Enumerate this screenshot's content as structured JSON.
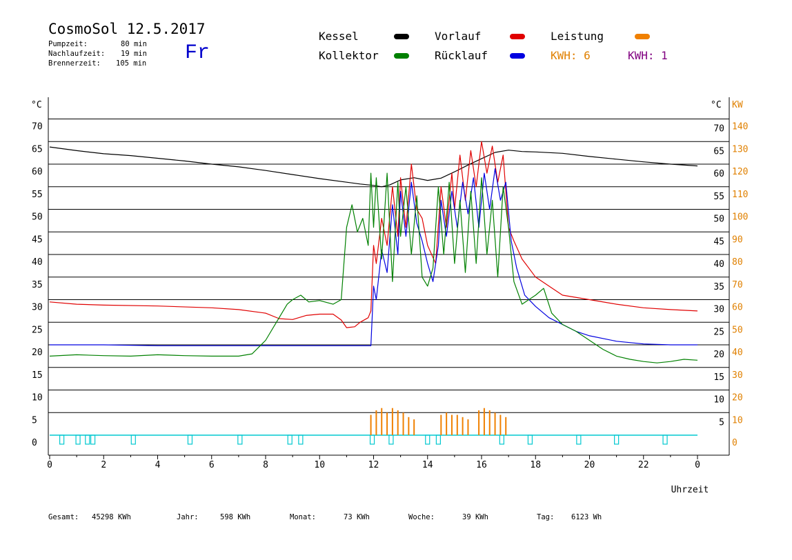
{
  "header": {
    "title": "CosmoSol 12.5.2017",
    "pump_label": "Pumpzeit:",
    "pump_value": "80 min",
    "nachlauf_label": "Nachlaufzeit:",
    "nachlauf_value": "19 min",
    "brenner_label": "Brennerzeit:",
    "brenner_value": "105 min",
    "day": "Fr"
  },
  "legend": {
    "kessel": {
      "label": "Kessel",
      "color": "#000000"
    },
    "vorlauf": {
      "label": "Vorlauf",
      "color": "#e00000"
    },
    "leistung": {
      "label": "Leistung",
      "color": "#f08000"
    },
    "kollektor": {
      "label": "Kollektor",
      "color": "#008000"
    },
    "ruecklauf": {
      "label": "Rücklauf",
      "color": "#0000e0"
    },
    "kwh_orange": {
      "label": "KWH: 6",
      "color": "#e08000"
    },
    "kwh_purple": {
      "label": "KWH: 1",
      "color": "#800080"
    }
  },
  "footer": {
    "gesamt_label": "Gesamt:",
    "gesamt_value": "45298 KWh",
    "jahr_label": "Jahr:",
    "jahr_value": "598 KWh",
    "monat_label": "Monat:",
    "monat_value": "73 KWh",
    "woche_label": "Woche:",
    "woche_value": "39 KWh",
    "tag_label": "Tag:",
    "tag_value": "6123 Wh"
  },
  "chart_data": {
    "type": "line",
    "xlabel": "Uhrzeit",
    "ylabel_left": "°C",
    "ylabel_right": "°C",
    "ylabel_right2": "KW",
    "xlim": [
      0,
      24
    ],
    "ylim": [
      0,
      70
    ],
    "x_ticks": [
      "0",
      "2",
      "4",
      "6",
      "8",
      "10",
      "12",
      "14",
      "16",
      "18",
      "20",
      "22",
      "0"
    ],
    "y_ticks_left": [
      "0",
      "5",
      "10",
      "15",
      "20",
      "25",
      "30",
      "35",
      "40",
      "45",
      "50",
      "55",
      "60",
      "65",
      "70"
    ],
    "y_ticks_right": [
      "5",
      "10",
      "15",
      "20",
      "25",
      "30",
      "35",
      "40",
      "45",
      "50",
      "55",
      "60",
      "65",
      "70"
    ],
    "y_ticks_kw": [
      "0",
      "10",
      "20",
      "30",
      "40",
      "50",
      "60",
      "70",
      "80",
      "90",
      "100",
      "110",
      "120",
      "130",
      "140"
    ],
    "grid": "horizontal",
    "series": [
      {
        "name": "Kessel",
        "color": "#000000",
        "x": [
          0,
          1,
          2,
          3,
          4,
          5,
          6,
          7,
          8,
          9,
          10,
          11,
          11.5,
          12,
          12.3,
          12.6,
          13,
          13.5,
          14,
          14.5,
          15,
          15.5,
          16,
          16.5,
          17,
          17.5,
          18,
          19,
          20,
          21,
          22,
          23,
          24
        ],
        "y": [
          63.8,
          63,
          62.3,
          61.9,
          61.3,
          60.7,
          60,
          59.4,
          58.6,
          57.7,
          56.8,
          56,
          55.6,
          55.3,
          55,
          55.4,
          56.5,
          57,
          56.4,
          56.9,
          58.3,
          59.8,
          61.2,
          62.6,
          63.1,
          62.8,
          62.7,
          62.4,
          61.7,
          61.1,
          60.5,
          60,
          59.6
        ]
      },
      {
        "name": "Vorlauf",
        "color": "#e00000",
        "x": [
          0,
          1,
          2,
          4,
          6,
          7,
          8,
          8.5,
          9,
          9.5,
          10,
          10.5,
          10.8,
          11,
          11.3,
          11.5,
          11.8,
          11.9,
          12,
          12.1,
          12.3,
          12.5,
          12.7,
          12.9,
          13,
          13.2,
          13.4,
          13.6,
          13.8,
          14,
          14.3,
          14.5,
          14.7,
          14.9,
          15,
          15.2,
          15.4,
          15.6,
          15.8,
          16,
          16.2,
          16.4,
          16.6,
          16.8,
          17,
          17.2,
          17.5,
          18,
          18.5,
          19,
          20,
          21,
          22,
          23,
          24
        ],
        "y": [
          29.5,
          29,
          28.8,
          28.6,
          28.2,
          27.8,
          27,
          25.8,
          25.6,
          26.5,
          26.8,
          26.8,
          25.5,
          23.8,
          24,
          25,
          26,
          27.5,
          42,
          38,
          48,
          42,
          55,
          44,
          57,
          46,
          60,
          50,
          48,
          42,
          38,
          55,
          46,
          58,
          50,
          62,
          52,
          63,
          55,
          65,
          58,
          64,
          56,
          62,
          46,
          43,
          39,
          35,
          33,
          31,
          30,
          29,
          28.2,
          27.8,
          27.5
        ]
      },
      {
        "name": "Rücklauf",
        "color": "#0000e0",
        "x": [
          0,
          2,
          4,
          6,
          8,
          10,
          11,
          11.9,
          12,
          12.1,
          12.3,
          12.5,
          12.7,
          12.9,
          13,
          13.2,
          13.4,
          13.6,
          13.8,
          14,
          14.2,
          14.4,
          14.5,
          14.7,
          14.9,
          15.1,
          15.3,
          15.5,
          15.7,
          15.9,
          16.1,
          16.3,
          16.5,
          16.7,
          16.9,
          17.1,
          17.3,
          17.6,
          18,
          18.5,
          19,
          19.5,
          20,
          21,
          22,
          23,
          24
        ],
        "y": [
          20,
          20,
          19.8,
          19.8,
          19.8,
          19.8,
          19.8,
          19.8,
          33,
          30,
          41,
          36,
          51,
          40,
          54,
          44,
          56,
          47,
          43,
          38,
          34,
          42,
          52,
          44,
          54,
          46,
          56,
          49,
          57,
          46,
          58,
          50,
          59,
          52,
          56,
          43,
          37,
          31,
          28.5,
          26,
          24.5,
          23,
          22,
          20.8,
          20.2,
          20,
          20
        ]
      },
      {
        "name": "Kollektor",
        "color": "#008000",
        "x": [
          0,
          1,
          2,
          3,
          4,
          5,
          6,
          7,
          7.5,
          8,
          8.5,
          8.8,
          9,
          9.3,
          9.6,
          10,
          10.5,
          10.8,
          11,
          11.2,
          11.4,
          11.6,
          11.8,
          11.9,
          12,
          12.1,
          12.3,
          12.5,
          12.7,
          12.9,
          13,
          13.2,
          13.4,
          13.6,
          13.8,
          14,
          14.2,
          14.4,
          14.6,
          14.8,
          15,
          15.2,
          15.4,
          15.6,
          15.8,
          16,
          16.2,
          16.4,
          16.6,
          16.8,
          17,
          17.2,
          17.5,
          18,
          18.3,
          18.6,
          19,
          19.5,
          20,
          20.5,
          21,
          21.5,
          22,
          22.5,
          23,
          23.5,
          24
        ],
        "y": [
          17.5,
          17.8,
          17.6,
          17.5,
          17.8,
          17.6,
          17.5,
          17.5,
          18,
          21,
          26,
          29,
          30,
          31,
          29.5,
          29.8,
          29,
          30,
          46,
          51,
          45,
          48,
          42,
          58,
          46,
          57,
          39,
          58,
          34,
          56,
          44,
          55,
          40,
          53,
          35,
          33,
          37,
          55,
          40,
          56,
          38,
          52,
          36,
          54,
          38,
          57,
          40,
          52,
          35,
          55,
          46,
          34,
          29,
          31,
          32.5,
          27,
          24.5,
          23,
          21,
          19,
          17.5,
          16.8,
          16.3,
          16,
          16.3,
          16.8,
          16.6
        ]
      }
    ],
    "leistung_bars": {
      "color": "#f08000",
      "x": [
        11.9,
        12.1,
        12.3,
        12.5,
        12.7,
        12.9,
        13.1,
        13.3,
        13.5,
        14.5,
        14.7,
        14.9,
        15.1,
        15.3,
        15.5,
        15.9,
        16.1,
        16.3,
        16.5,
        16.7,
        16.9
      ],
      "y": [
        4.5,
        5.5,
        6,
        5,
        6,
        5.5,
        5,
        4,
        3.5,
        4.5,
        5,
        4.5,
        4.5,
        4,
        3.5,
        5.5,
        6,
        5.5,
        5,
        4.5,
        4
      ]
    },
    "pump_marks": {
      "color": "#00c8d0",
      "x": [
        0.45,
        1.05,
        1.4,
        1.6,
        3.1,
        5.2,
        7.05,
        8.9,
        9.3,
        11.95,
        12.65,
        14.0,
        14.4,
        16.75,
        17.8,
        19.6,
        21.0,
        22.8
      ]
    }
  }
}
